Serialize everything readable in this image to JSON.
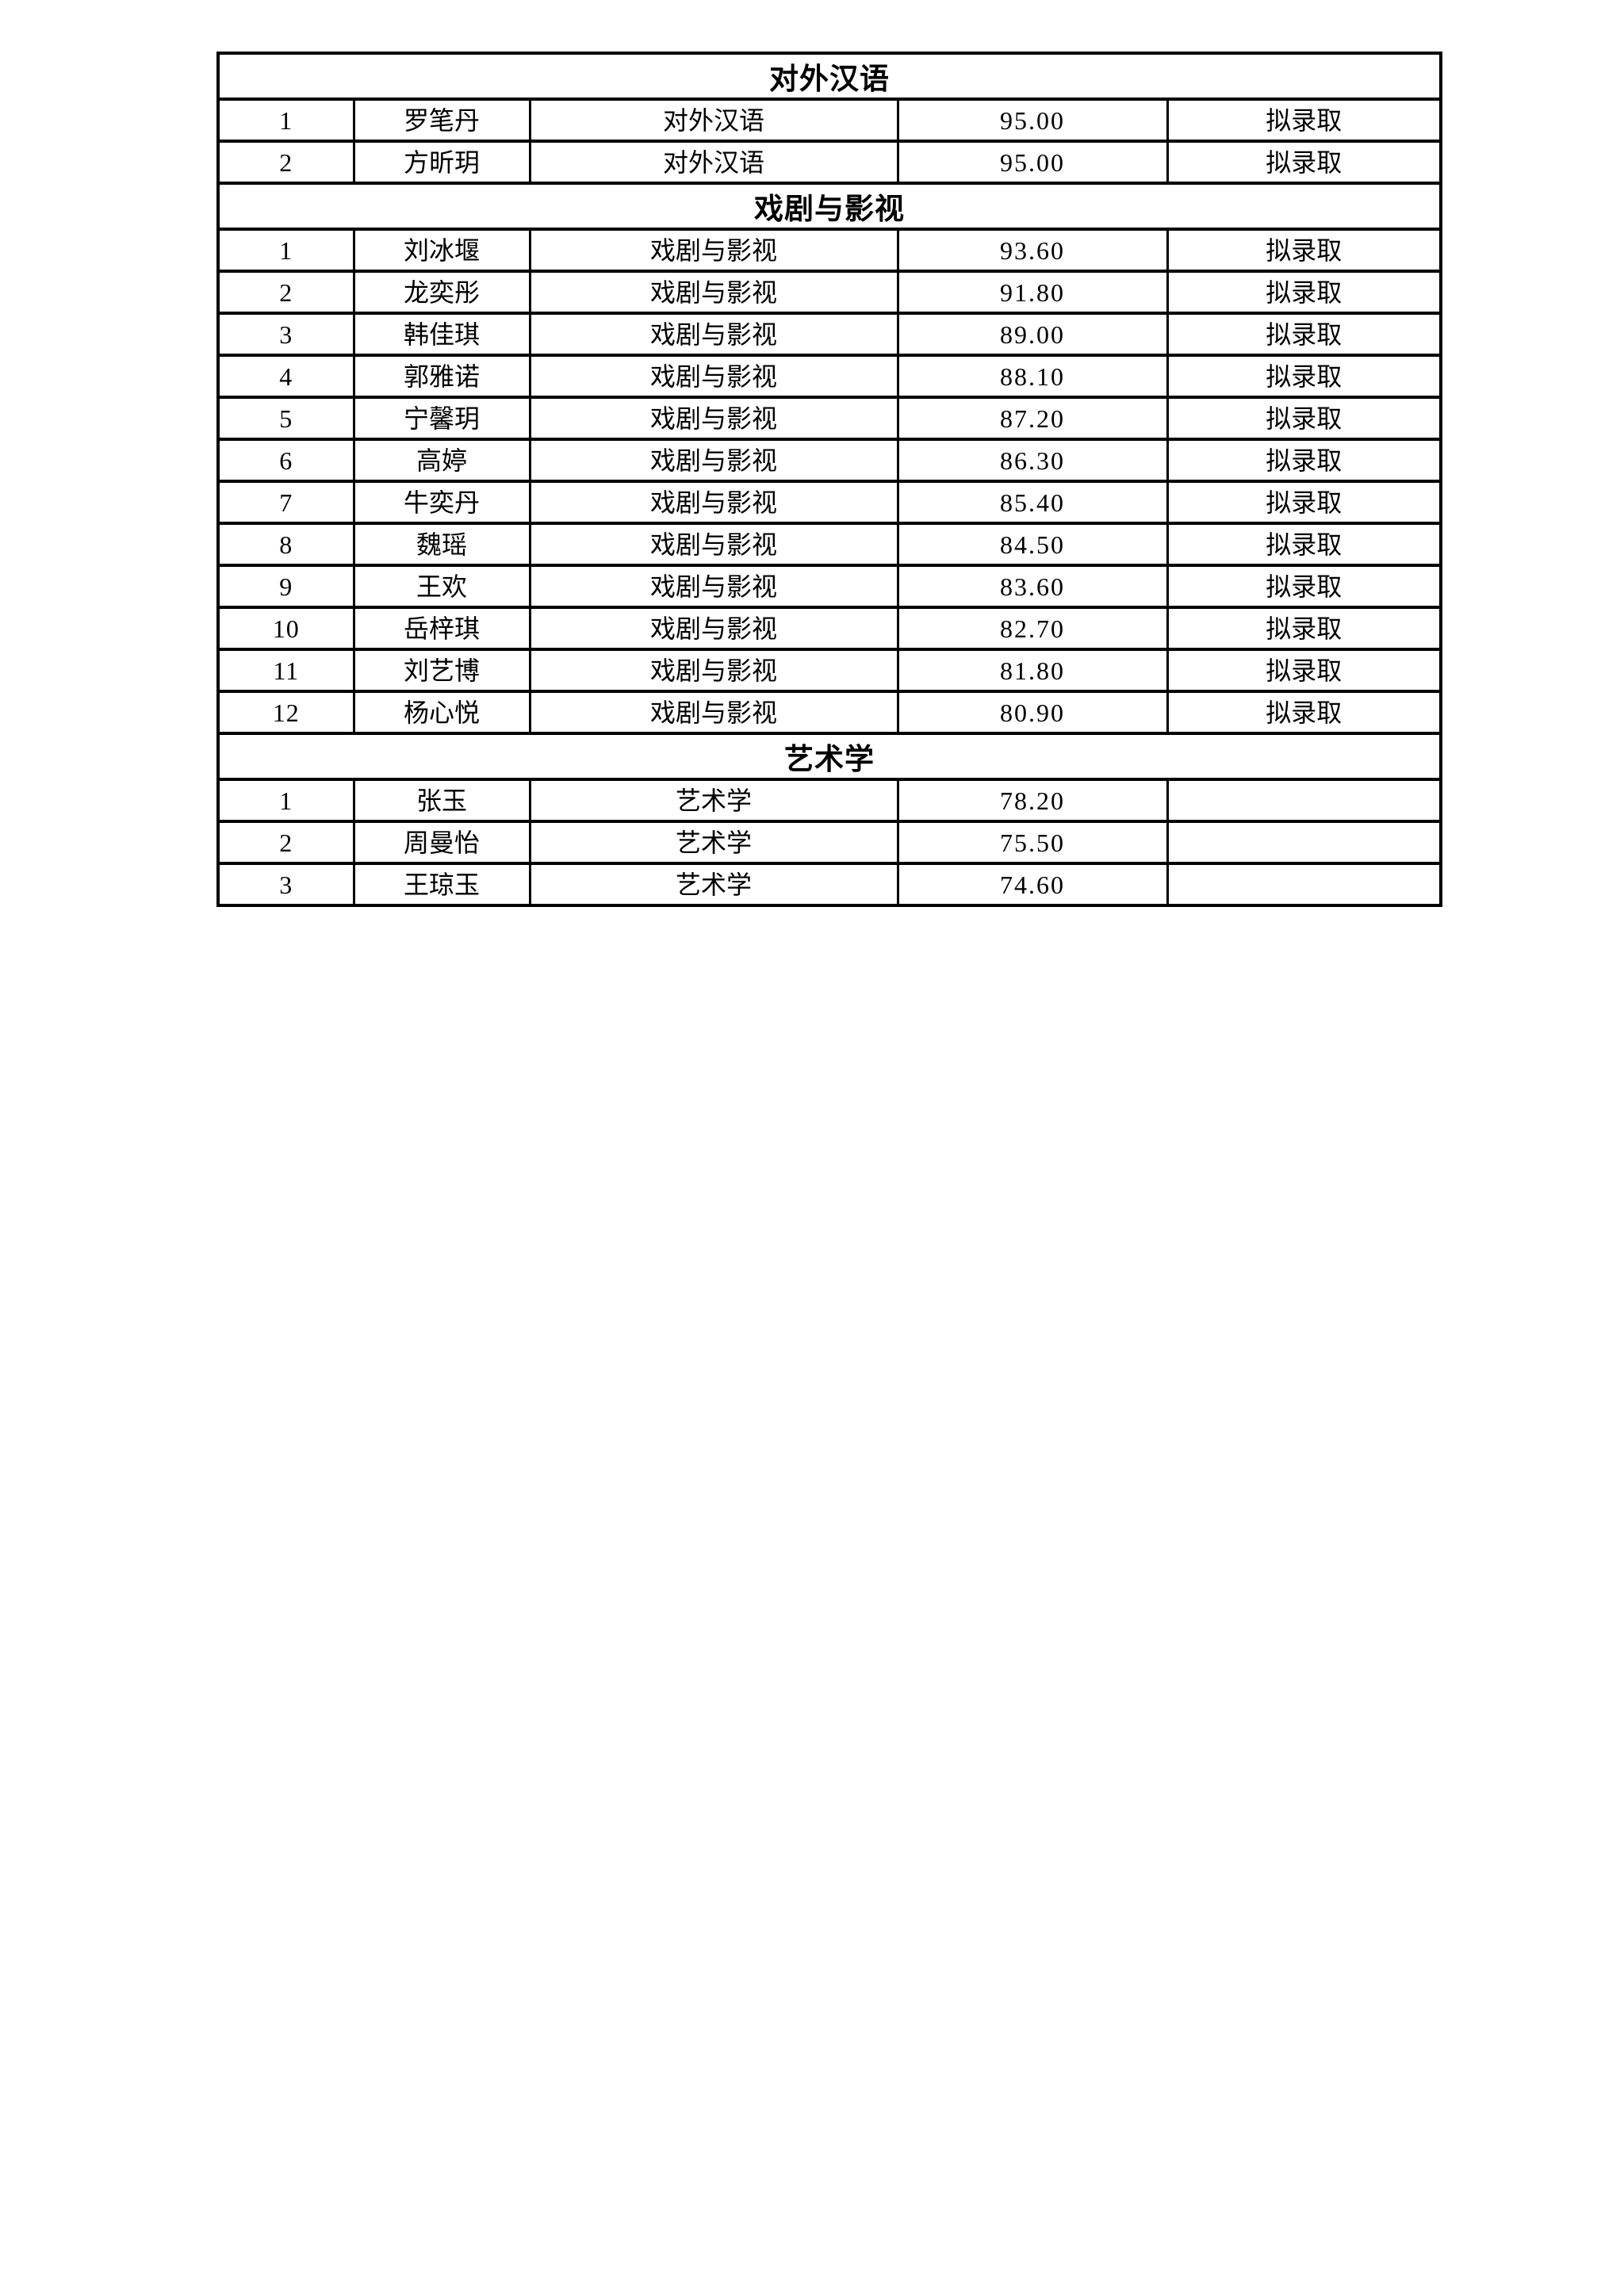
{
  "page": {
    "background_color": "#ffffff",
    "border_color": "#000000",
    "text_color": "#000000"
  },
  "table": {
    "sections": [
      {
        "title": "对外汉语",
        "rows": [
          {
            "no": "1",
            "name": "罗笔丹",
            "major": "对外汉语",
            "score": "95.00",
            "status": "拟录取"
          },
          {
            "no": "2",
            "name": "方昕玥",
            "major": "对外汉语",
            "score": "95.00",
            "status": "拟录取"
          }
        ]
      },
      {
        "title": "戏剧与影视",
        "rows": [
          {
            "no": "1",
            "name": "刘冰堰",
            "major": "戏剧与影视",
            "score": "93.60",
            "status": "拟录取"
          },
          {
            "no": "2",
            "name": "龙奕彤",
            "major": "戏剧与影视",
            "score": "91.80",
            "status": "拟录取"
          },
          {
            "no": "3",
            "name": "韩佳琪",
            "major": "戏剧与影视",
            "score": "89.00",
            "status": "拟录取"
          },
          {
            "no": "4",
            "name": "郭雅诺",
            "major": "戏剧与影视",
            "score": "88.10",
            "status": "拟录取"
          },
          {
            "no": "5",
            "name": "宁馨玥",
            "major": "戏剧与影视",
            "score": "87.20",
            "status": "拟录取"
          },
          {
            "no": "6",
            "name": "高婷",
            "major": "戏剧与影视",
            "score": "86.30",
            "status": "拟录取"
          },
          {
            "no": "7",
            "name": "牛奕丹",
            "major": "戏剧与影视",
            "score": "85.40",
            "status": "拟录取"
          },
          {
            "no": "8",
            "name": "魏瑶",
            "major": "戏剧与影视",
            "score": "84.50",
            "status": "拟录取"
          },
          {
            "no": "9",
            "name": "王欢",
            "major": "戏剧与影视",
            "score": "83.60",
            "status": "拟录取"
          },
          {
            "no": "10",
            "name": "岳梓琪",
            "major": "戏剧与影视",
            "score": "82.70",
            "status": "拟录取"
          },
          {
            "no": "11",
            "name": "刘艺博",
            "major": "戏剧与影视",
            "score": "81.80",
            "status": "拟录取"
          },
          {
            "no": "12",
            "name": "杨心悦",
            "major": "戏剧与影视",
            "score": "80.90",
            "status": "拟录取"
          }
        ]
      },
      {
        "title": "艺术学",
        "rows": [
          {
            "no": "1",
            "name": "张玉",
            "major": "艺术学",
            "score": "78.20",
            "status": ""
          },
          {
            "no": "2",
            "name": "周曼怡",
            "major": "艺术学",
            "score": "75.50",
            "status": ""
          },
          {
            "no": "3",
            "name": "王琼玉",
            "major": "艺术学",
            "score": "74.60",
            "status": ""
          }
        ]
      }
    ]
  }
}
